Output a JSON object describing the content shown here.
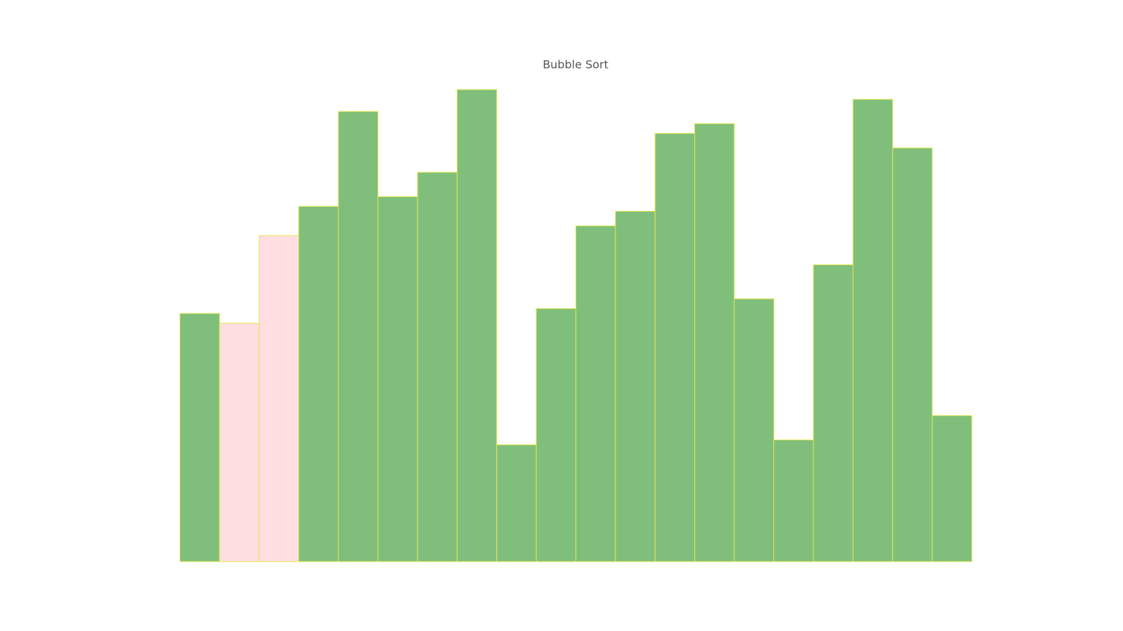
{
  "chart_data": {
    "type": "bar",
    "title": "Bubble Sort",
    "values": [
      51,
      49,
      67,
      73,
      92.5,
      75,
      80,
      97,
      24,
      52,
      69,
      72,
      88,
      90,
      54,
      25,
      61,
      95,
      85,
      30
    ],
    "colors": [
      "#7fbf7b",
      "#ffdde1",
      "#ffdde1",
      "#7fbf7b",
      "#7fbf7b",
      "#7fbf7b",
      "#7fbf7b",
      "#7fbf7b",
      "#7fbf7b",
      "#7fbf7b",
      "#7fbf7b",
      "#7fbf7b",
      "#7fbf7b",
      "#7fbf7b",
      "#7fbf7b",
      "#7fbf7b",
      "#7fbf7b",
      "#7fbf7b",
      "#7fbf7b",
      "#7fbf7b"
    ],
    "edgecolor": "#e6e64a",
    "ylim": [
      0,
      100
    ]
  }
}
